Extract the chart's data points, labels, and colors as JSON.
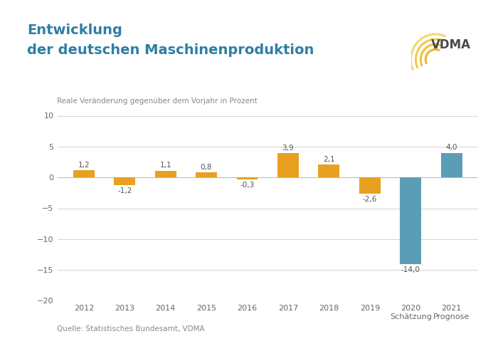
{
  "categories_top": [
    "2012",
    "2013",
    "2014",
    "2015",
    "2016",
    "2017",
    "2018",
    "2019",
    "2020",
    "2021"
  ],
  "categories_sub": [
    "",
    "",
    "",
    "",
    "",
    "",
    "",
    "",
    "Schätzung",
    "Prognose"
  ],
  "values": [
    1.2,
    -1.2,
    1.1,
    0.8,
    -0.3,
    3.9,
    2.1,
    -2.6,
    -14.0,
    4.0
  ],
  "bar_colors": [
    "#E8A020",
    "#E8A020",
    "#E8A020",
    "#E8A020",
    "#E8A020",
    "#E8A020",
    "#E8A020",
    "#E8A020",
    "#5B9DB5",
    "#5B9DB5"
  ],
  "title_line1": "Entwicklung",
  "title_line2": "der deutschen Maschinenproduktion",
  "subtitle": "Reale Veränderung gegenüber dem Vorjahr in Prozent",
  "source": "Quelle: Statistisches Bundesamt, VDMA",
  "ylim": [
    -20,
    10
  ],
  "yticks": [
    -20,
    -15,
    -10,
    -5,
    0,
    5,
    10
  ],
  "title_color": "#2E7FA3",
  "subtitle_color": "#888888",
  "background_color": "#FFFFFF",
  "label_color": "#555555",
  "grid_color": "#CCCCCC",
  "axis_color": "#BBBBBB",
  "source_color": "#888888",
  "vdma_color": "#4A4A4A",
  "logo_colors": [
    "#F0B429",
    "#F0C040",
    "#F0CC50",
    "#F5D870"
  ],
  "tick_color": "#666666"
}
